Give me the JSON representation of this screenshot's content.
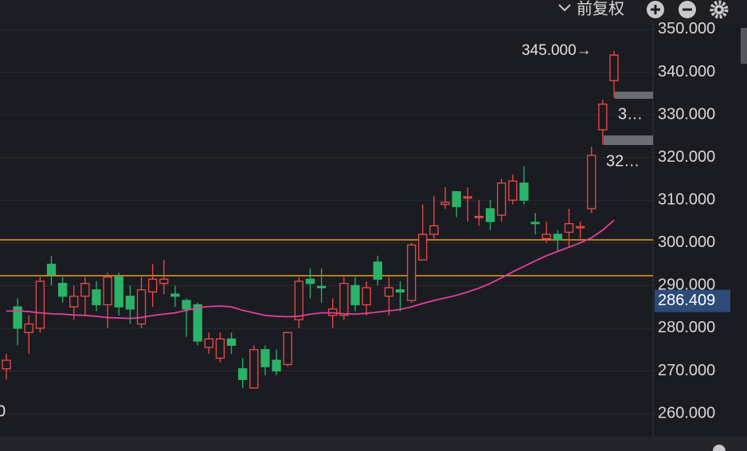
{
  "chart_data": {
    "type": "candlestick",
    "toolbar": {
      "adjust": "前复权"
    },
    "up_color": "#f04a4a",
    "down_color": "#2bb36a",
    "ylim": [
      254.6,
      351.3
    ],
    "yticks": [
      {
        "value": 260,
        "label": "260.000"
      },
      {
        "value": 270,
        "label": "270.000"
      },
      {
        "value": 280,
        "label": "280.000"
      },
      {
        "value": 290,
        "label": "290.000"
      },
      {
        "value": 300,
        "label": "300.000"
      },
      {
        "value": 310,
        "label": "310.000"
      },
      {
        "value": 320,
        "label": "320.000"
      },
      {
        "value": 330,
        "label": "330.000"
      },
      {
        "value": 340,
        "label": "340.000"
      },
      {
        "value": 350,
        "label": "350.000"
      }
    ],
    "grid": true,
    "open": [
      270.5,
      285,
      279,
      280,
      295,
      290.5,
      285,
      287.5,
      289,
      285.5,
      292,
      287.5,
      281,
      288.5,
      290.5,
      288,
      286.5,
      285.5,
      275.5,
      273,
      277.5,
      270.5,
      266,
      275,
      272.5,
      271.5,
      282,
      291.5,
      289.8,
      283,
      283,
      290,
      285.5,
      295.5,
      287.5,
      289,
      286.5,
      296,
      302,
      309,
      312,
      310.5,
      306,
      308,
      306.5,
      310,
      314,
      304.8,
      301,
      302,
      302.5,
      303.6,
      308,
      326.5,
      338
    ],
    "high": [
      274,
      287,
      283,
      292,
      297,
      292,
      290,
      292,
      291,
      293,
      293,
      290,
      292,
      295,
      296,
      290,
      287,
      286,
      279,
      279,
      279,
      273,
      276,
      276,
      275,
      279,
      292,
      294,
      294,
      287,
      292,
      292,
      291,
      297,
      292,
      291,
      300,
      309,
      311,
      313,
      312,
      313,
      310,
      310,
      315,
      316,
      318,
      307,
      305,
      303,
      308,
      305,
      322.5,
      333.5,
      345
    ],
    "low": [
      268,
      276,
      274,
      279,
      290,
      286,
      282,
      283,
      284,
      280,
      283,
      281,
      280,
      285,
      288,
      285,
      278,
      276,
      274,
      272,
      274,
      266,
      266,
      269,
      269,
      271,
      280,
      287,
      286,
      280,
      282,
      284,
      283,
      290,
      283,
      284,
      286,
      296,
      301,
      308,
      306,
      305,
      304,
      303,
      305,
      309,
      309,
      302,
      300,
      298,
      299,
      301,
      307,
      323,
      334
    ],
    "close": [
      272.5,
      280,
      281,
      291,
      292.5,
      287.5,
      287.5,
      290.5,
      285.5,
      292,
      285,
      284.5,
      289,
      291.5,
      291.5,
      287.5,
      284.5,
      277,
      277.5,
      277.5,
      276,
      268,
      275,
      271,
      270,
      279,
      291,
      290.5,
      289.5,
      284.5,
      290.5,
      285.5,
      289.5,
      291.5,
      289.5,
      288.5,
      299.5,
      302,
      304,
      309.5,
      308.5,
      310.8,
      306.2,
      305,
      314,
      314.5,
      310,
      304.5,
      302,
      300.8,
      304.5,
      303.8,
      320.5,
      332.5,
      344
    ],
    "ma": {
      "color": "#e0409a",
      "values": [
        284,
        284.1,
        283.9,
        283.6,
        283.4,
        283.3,
        283.1,
        283,
        282.8,
        282.5,
        282.4,
        282.3,
        282.5,
        283,
        283.3,
        283.6,
        284.2,
        284.8,
        285.1,
        285.2,
        285,
        284.2,
        283.6,
        283,
        282.8,
        282.7,
        282.8,
        283.3,
        283.6,
        283.6,
        283.4,
        283.3,
        283.5,
        283.8,
        284.1,
        284.4,
        285,
        285.8,
        286.5,
        287.1,
        287.7,
        288.5,
        289.4,
        290.5,
        291.8,
        293.2,
        294.5,
        295.8,
        297,
        298,
        299,
        300,
        301.2,
        303,
        305.3
      ]
    },
    "hlines": {
      "color": "#e6a020",
      "values": [
        300.7,
        292.3
      ]
    },
    "last_price": 286.409,
    "annotations": [
      "345.000→",
      "3…",
      "32…",
      "0"
    ]
  }
}
